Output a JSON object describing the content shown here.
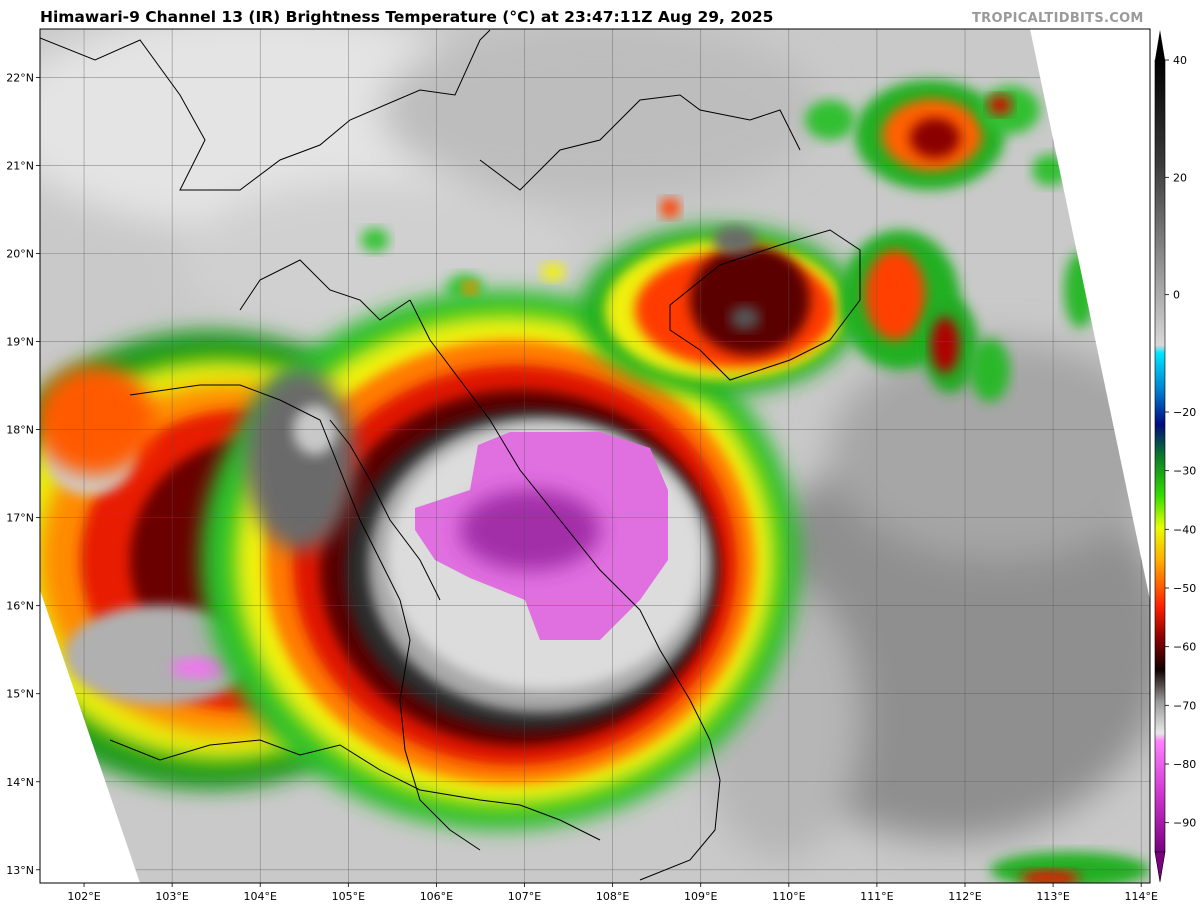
{
  "title": "Himawari-9 Channel 13 (IR) Brightness Temperature (°C) at 23:47:11Z Aug 29, 2025",
  "credit": "TROPICALTIDBITS.COM",
  "map": {
    "lon_range": [
      101.5,
      114.1
    ],
    "lat_range": [
      12.85,
      22.55
    ],
    "lon_ticks": [
      102,
      103,
      104,
      105,
      106,
      107,
      108,
      109,
      110,
      111,
      112,
      113,
      114
    ],
    "lat_ticks": [
      13,
      14,
      15,
      16,
      17,
      18,
      19,
      20,
      21,
      22
    ],
    "lon_labels": [
      "102°E",
      "103°E",
      "104°E",
      "105°E",
      "106°E",
      "107°E",
      "108°E",
      "109°E",
      "110°E",
      "111°E",
      "112°E",
      "113°E",
      "114°E"
    ],
    "lat_labels": [
      "13°N",
      "14°N",
      "15°N",
      "16°N",
      "17°N",
      "18°N",
      "19°N",
      "20°N",
      "21°N",
      "22°N"
    ],
    "grid": true
  },
  "colorbar": {
    "range": [
      -95,
      40
    ],
    "ticks": [
      40,
      20,
      0,
      -20,
      -30,
      -40,
      -50,
      -60,
      -70,
      -80,
      -90
    ],
    "tick_labels": [
      "40",
      "20",
      "0",
      "−20",
      "−30",
      "−40",
      "−50",
      "−60",
      "−70",
      "−80",
      "−90"
    ]
  },
  "cloud_features": [
    {
      "kind": "tropical-cyclone-core",
      "center_lon": 107.0,
      "center_lat": 16.9,
      "min_temp_c": -90
    },
    {
      "kind": "convective-cluster",
      "center_lon": 109.5,
      "center_lat": 19.2,
      "min_temp_c": -75
    },
    {
      "kind": "convective-cluster",
      "center_lon": 111.5,
      "center_lat": 21.4,
      "min_temp_c": -72
    },
    {
      "kind": "convective-band",
      "center_lon": 103.0,
      "center_lat": 15.5,
      "min_temp_c": -82
    }
  ]
}
